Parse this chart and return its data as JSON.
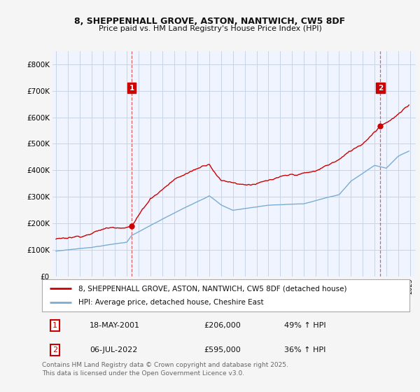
{
  "title": "8, SHEPPENHALL GROVE, ASTON, NANTWICH, CW5 8DF",
  "subtitle": "Price paid vs. HM Land Registry's House Price Index (HPI)",
  "background_color": "#f5f5f5",
  "plot_bg_color": "#f0f4ff",
  "grid_color": "#c8d4e8",
  "red_color": "#cc0000",
  "blue_color": "#7aadd4",
  "legend_line1": "8, SHEPPENHALL GROVE, ASTON, NANTWICH, CW5 8DF (detached house)",
  "legend_line2": "HPI: Average price, detached house, Cheshire East",
  "footnote": "Contains HM Land Registry data © Crown copyright and database right 2025.\nThis data is licensed under the Open Government Licence v3.0.",
  "ylim": [
    0,
    850000
  ],
  "yticks": [
    0,
    100000,
    200000,
    300000,
    400000,
    500000,
    600000,
    700000,
    800000
  ],
  "ytick_labels": [
    "£0",
    "£100K",
    "£200K",
    "£300K",
    "£400K",
    "£500K",
    "£600K",
    "£700K",
    "£800K"
  ],
  "purchase1_year": 2001.37,
  "purchase1_price": 206000,
  "purchase2_year": 2022.5,
  "purchase2_price": 595000
}
